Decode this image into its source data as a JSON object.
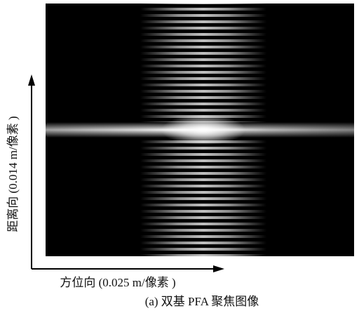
{
  "figure": {
    "y_axis_label": "距离向 (0.014 m/像素 )",
    "x_axis_label": "方位向 (0.025 m/像素 )",
    "caption": "(a) 双基 PFA 聚焦图像"
  }
}
